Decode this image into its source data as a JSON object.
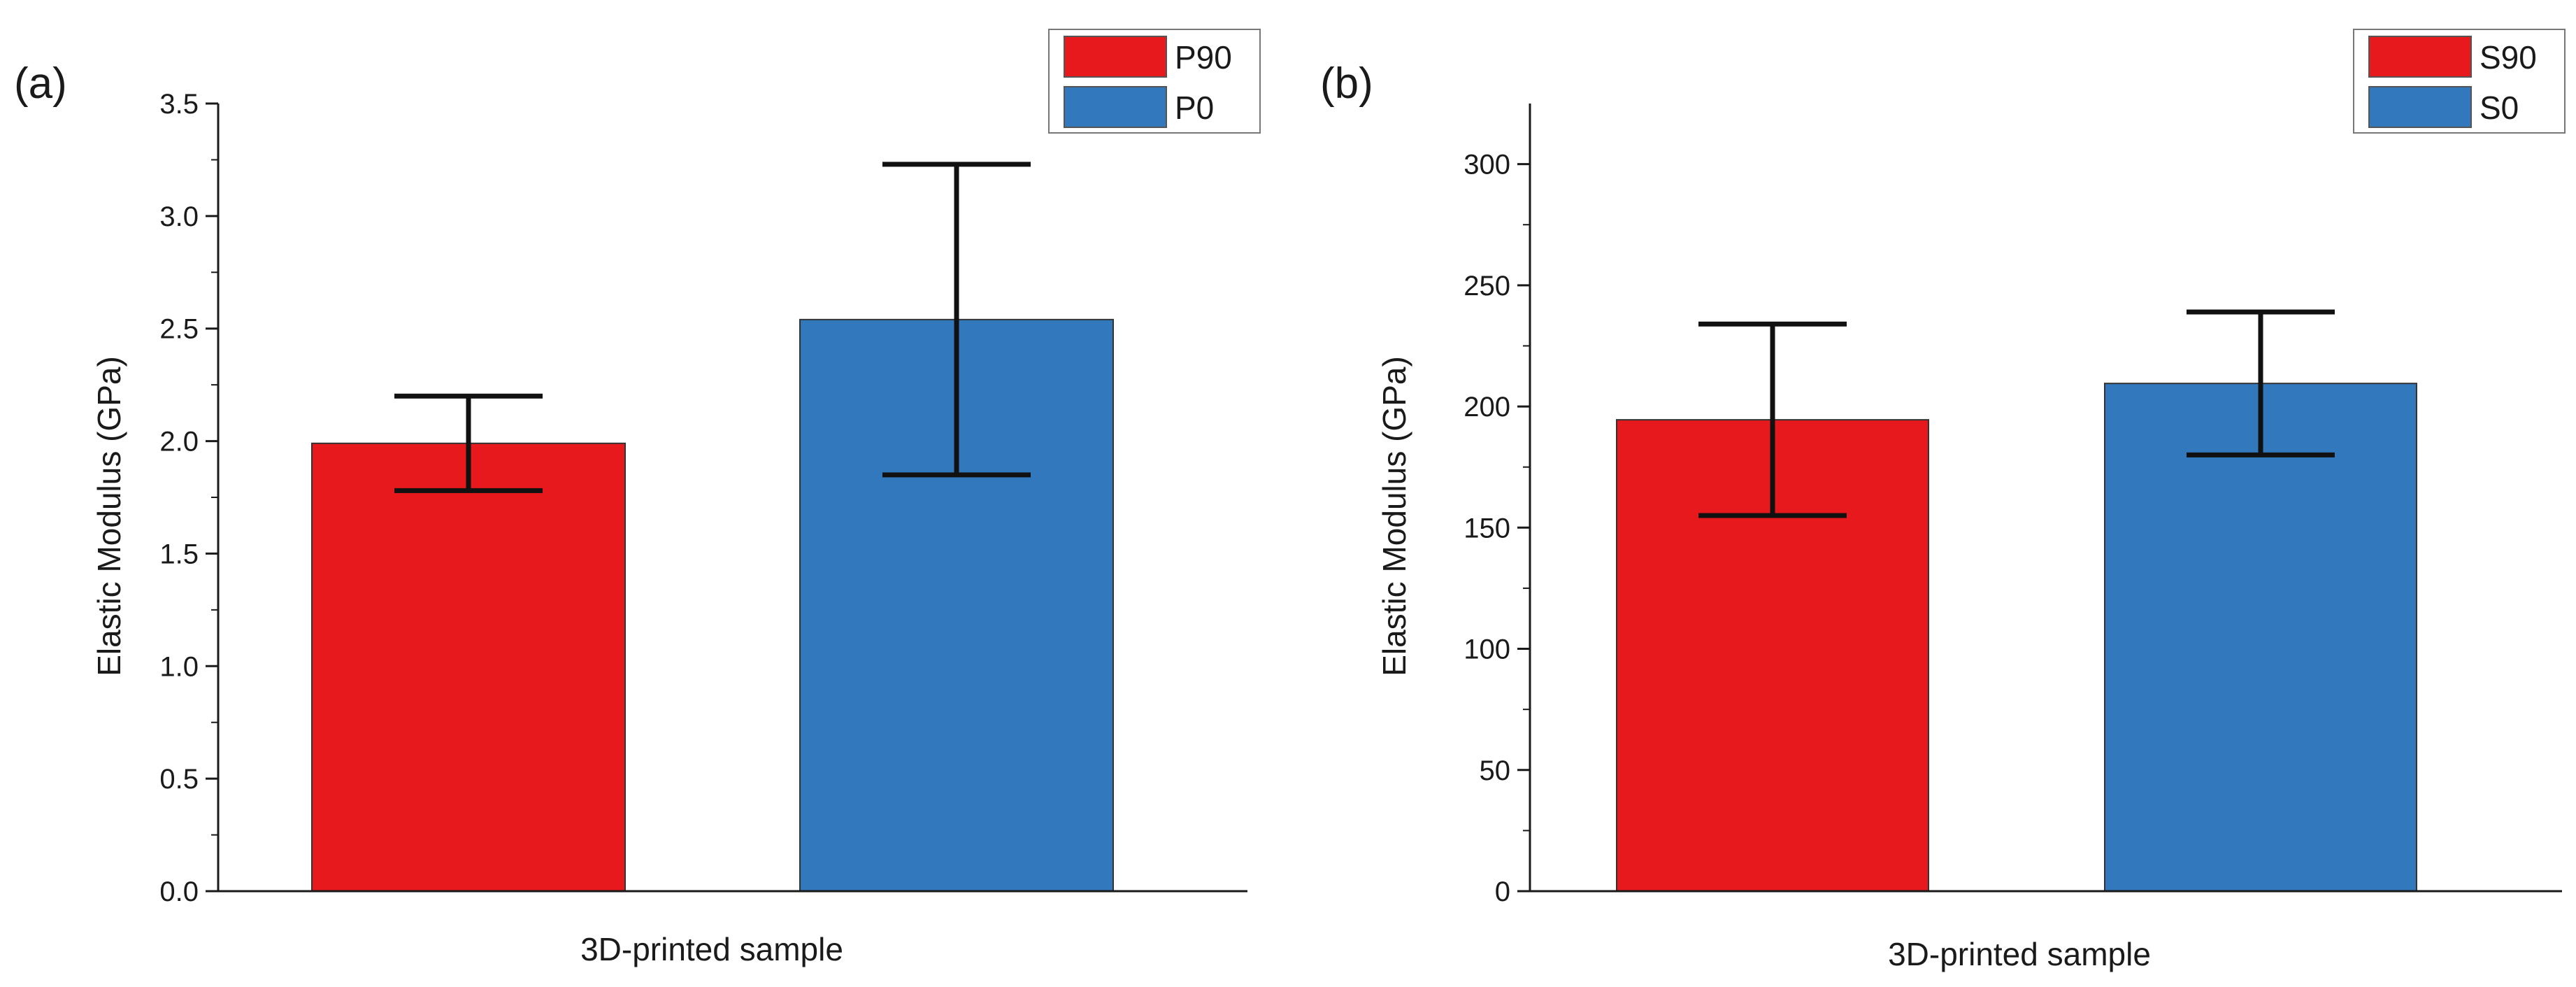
{
  "colors": {
    "red": "#e8191c",
    "blue": "#3278bd",
    "axis": "#1a1a1a",
    "errorbar": "#111111"
  },
  "chart_data": [
    {
      "type": "bar",
      "panel_label": "(a)",
      "xlabel": "3D-printed sample",
      "ylabel": "Elastic Modulus (GPa)",
      "ylim": [
        0,
        3.5
      ],
      "yticks": [
        "0.0",
        "0.5",
        "1.0",
        "1.5",
        "2.0",
        "2.5",
        "3.0",
        "3.5"
      ],
      "ytick_values": [
        0,
        0.5,
        1,
        1.5,
        2,
        2.5,
        3,
        3.5
      ],
      "grid": false,
      "legend_position": "top-right",
      "series": [
        {
          "name": "P90",
          "value": 1.99,
          "error": 0.21,
          "color": "#e8191c"
        },
        {
          "name": "P0",
          "value": 2.54,
          "error": 0.69,
          "color": "#3278bd"
        }
      ]
    },
    {
      "type": "bar",
      "panel_label": "(b)",
      "xlabel": "3D-printed sample",
      "ylabel": "Elastic Modulus (GPa)",
      "ylim": [
        0,
        325
      ],
      "yticks": [
        "0",
        "50",
        "100",
        "150",
        "200",
        "250",
        "300"
      ],
      "ytick_values": [
        0,
        50,
        100,
        150,
        200,
        250,
        300
      ],
      "grid": false,
      "legend_position": "top-right",
      "series": [
        {
          "name": "S90",
          "value": 194.5,
          "error": 39.5,
          "color": "#e8191c"
        },
        {
          "name": "S0",
          "value": 209.5,
          "error": 29.5,
          "color": "#3278bd"
        }
      ]
    }
  ]
}
